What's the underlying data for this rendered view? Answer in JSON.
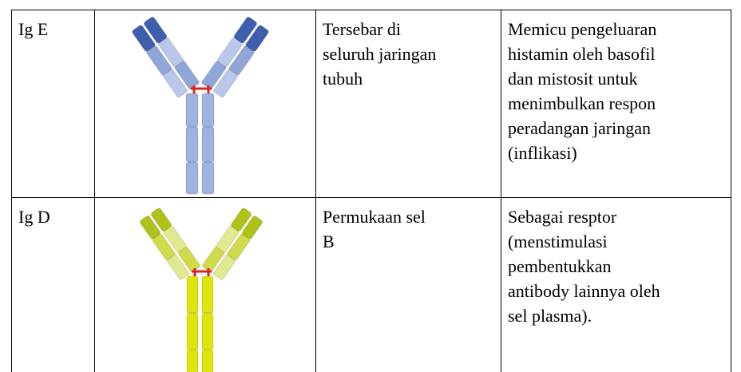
{
  "table": {
    "rows": [
      {
        "name": "Ig E",
        "location": [
          "Tersebar di",
          "seluruh jaringan",
          "tubuh"
        ],
        "function": [
          "Memicu pengeluaran",
          "histamin oleh basofil",
          "dan mistosit untuk",
          "menimbulkan respon",
          "peradangan jaringan",
          "(inflikasi)"
        ]
      },
      {
        "name": "Ig D",
        "location": [
          "Permukaan sel",
          "B"
        ],
        "function": [
          "Sebagai resptor",
          "(menstimulasi",
          "pembentukkan",
          "antibody lainnya oleh",
          "sel plasma)."
        ]
      }
    ]
  }
}
